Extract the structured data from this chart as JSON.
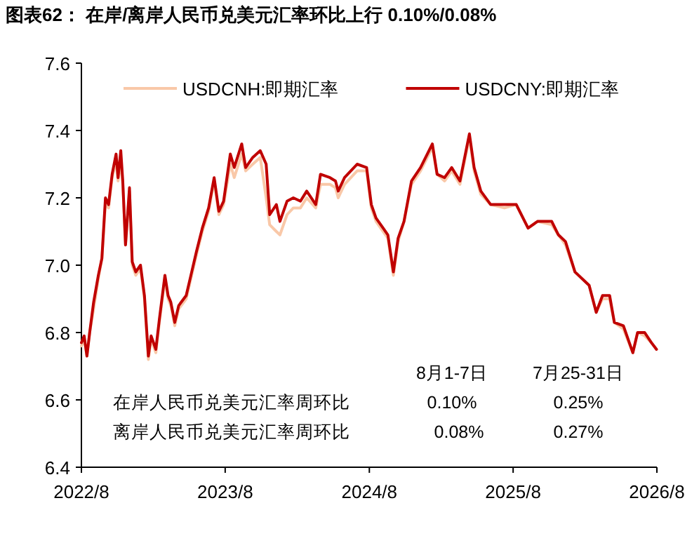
{
  "chart_data": {
    "type": "line",
    "title": "图表62：  在岸/离岸人民币兑美元汇率环比上行 0.10%/0.08%",
    "x": [
      "2022-08-01",
      "2022-08-08",
      "2022-08-15",
      "2022-08-22",
      "2022-09-01",
      "2022-09-13",
      "2022-09-22",
      "2022-10-01",
      "2022-10-09",
      "2022-10-18",
      "2022-10-28",
      "2022-11-02",
      "2022-11-09",
      "2022-11-14",
      "2022-11-21",
      "2022-12-01",
      "2022-12-08",
      "2022-12-17",
      "2022-12-29",
      "2023-01-08",
      "2023-01-18",
      "2023-01-25",
      "2023-02-06",
      "2023-02-15",
      "2023-03-01",
      "2023-03-09",
      "2023-03-16",
      "2023-03-26",
      "2023-04-05",
      "2023-04-24",
      "2023-05-08",
      "2023-05-20",
      "2023-06-04",
      "2023-06-20",
      "2023-07-04",
      "2023-07-16",
      "2023-07-28",
      "2023-08-14",
      "2023-08-24",
      "2023-09-12",
      "2023-09-22",
      "2023-10-10",
      "2023-10-29",
      "2023-11-13",
      "2023-11-22",
      "2023-12-09",
      "2023-12-18",
      "2024-01-05",
      "2024-01-21",
      "2024-02-08",
      "2024-02-24",
      "2024-03-18",
      "2024-03-30",
      "2024-04-23",
      "2024-05-07",
      "2024-05-14",
      "2024-05-30",
      "2024-07-01",
      "2024-07-25",
      "2024-08-06",
      "2024-08-18",
      "2024-09-05",
      "2024-09-17",
      "2024-10-01",
      "2024-10-13",
      "2024-10-28",
      "2024-11-16",
      "2024-12-09",
      "2025-01-08",
      "2025-01-20",
      "2025-02-08",
      "2025-02-26",
      "2025-03-19",
      "2025-04-12",
      "2025-04-24",
      "2025-05-11",
      "2025-06-05",
      "2025-07-10",
      "2025-08-09",
      "2025-09-08",
      "2025-10-02",
      "2025-11-07",
      "2025-11-24",
      "2025-12-12",
      "2026-01-05",
      "2026-02-10",
      "2026-02-28",
      "2026-03-16",
      "2026-04-03",
      "2026-04-15",
      "2026-05-08",
      "2026-06-01",
      "2026-06-13",
      "2026-07-01",
      "2026-07-18",
      "2026-07-31"
    ],
    "series": [
      {
        "name": "USDCNH:即期汇率",
        "color": "#f9c8a8",
        "values": [
          6.76,
          6.78,
          6.73,
          6.8,
          6.87,
          6.96,
          7.02,
          7.18,
          7.17,
          7.26,
          7.31,
          7.25,
          7.31,
          7.24,
          7.06,
          7.22,
          7.0,
          6.97,
          6.99,
          6.9,
          6.72,
          6.78,
          6.74,
          6.83,
          6.96,
          6.9,
          6.88,
          6.82,
          6.87,
          6.9,
          6.97,
          7.03,
          7.1,
          7.16,
          7.25,
          7.15,
          7.18,
          7.3,
          7.26,
          7.33,
          7.28,
          7.3,
          7.32,
          7.2,
          7.12,
          7.1,
          7.09,
          7.15,
          7.17,
          7.17,
          7.2,
          7.17,
          7.24,
          7.24,
          7.23,
          7.2,
          7.24,
          7.28,
          7.28,
          7.17,
          7.13,
          7.1,
          7.08,
          6.97,
          7.07,
          7.13,
          7.24,
          7.28,
          7.35,
          7.27,
          7.25,
          7.28,
          7.24,
          7.38,
          7.28,
          7.21,
          7.18,
          7.17,
          7.18,
          7.11,
          7.13,
          7.12,
          7.09,
          7.06,
          6.98,
          6.94,
          6.86,
          6.9,
          6.9,
          6.83,
          6.81,
          6.74,
          6.8,
          6.79,
          6.77,
          6.75
        ]
      },
      {
        "name": "USDCNY:即期汇率",
        "color": "#c00000",
        "values": [
          6.77,
          6.79,
          6.73,
          6.8,
          6.89,
          6.97,
          7.02,
          7.2,
          7.18,
          7.27,
          7.33,
          7.26,
          7.34,
          7.25,
          7.06,
          7.23,
          7.01,
          6.98,
          7.0,
          6.91,
          6.73,
          6.79,
          6.75,
          6.84,
          6.97,
          6.91,
          6.89,
          6.83,
          6.88,
          6.91,
          6.98,
          7.04,
          7.11,
          7.17,
          7.26,
          7.16,
          7.19,
          7.33,
          7.29,
          7.36,
          7.29,
          7.32,
          7.34,
          7.3,
          7.15,
          7.18,
          7.13,
          7.19,
          7.2,
          7.19,
          7.22,
          7.18,
          7.27,
          7.26,
          7.25,
          7.22,
          7.26,
          7.3,
          7.29,
          7.18,
          7.14,
          7.11,
          7.09,
          6.98,
          7.08,
          7.13,
          7.25,
          7.29,
          7.36,
          7.27,
          7.26,
          7.29,
          7.25,
          7.39,
          7.29,
          7.22,
          7.18,
          7.18,
          7.18,
          7.11,
          7.13,
          7.13,
          7.09,
          7.07,
          6.98,
          6.94,
          6.86,
          6.91,
          6.91,
          6.83,
          6.82,
          6.74,
          6.8,
          6.8,
          6.77,
          6.75
        ]
      }
    ],
    "xlim": [
      "2022-08-01",
      "2026-08-01"
    ],
    "xticks": [
      {
        "value": "2022-08-01",
        "label": "2022/8"
      },
      {
        "value": "2023-08-01",
        "label": "2023/8"
      },
      {
        "value": "2024-08-01",
        "label": "2024/8"
      },
      {
        "value": "2025-08-01",
        "label": "2025/8"
      },
      {
        "value": "2026-08-01",
        "label": "2026/8"
      }
    ],
    "ylim": [
      6.4,
      7.6
    ],
    "yticks": [
      6.4,
      6.6,
      6.8,
      {
        "value": 7.0,
        "label": "7.0"
      },
      7.2,
      7.4,
      7.6
    ],
    "grid": false,
    "legend": "top",
    "annotations": [
      "8月1-7日",
      "7月25-31日",
      "在岸人民币兑美元汇率周环比",
      "离岸人民币兑美元汇率周环比",
      "0.10%",
      "0.25%",
      "0.08%",
      "0.27%"
    ]
  }
}
